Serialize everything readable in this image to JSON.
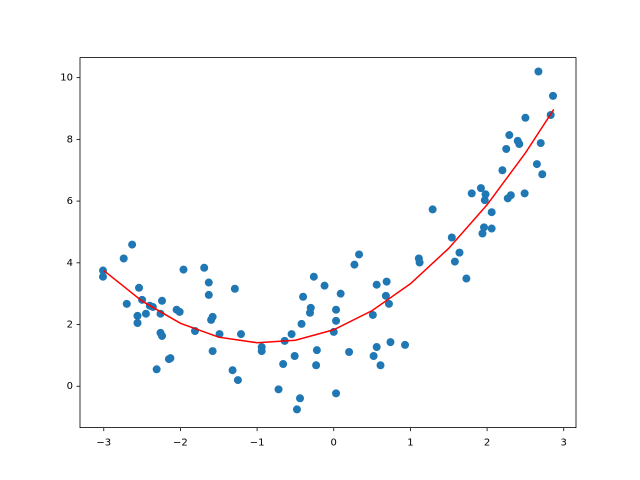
{
  "chart_data": {
    "type": "scatter",
    "x": [
      -3.01,
      -3.01,
      -2.74,
      -2.63,
      -2.7,
      -2.54,
      -2.56,
      -2.56,
      -2.5,
      -2.45,
      -2.4,
      -2.36,
      -2.31,
      -2.24,
      -2.26,
      -2.26,
      -2.24,
      -2.15,
      -2.13,
      -2.05,
      -2.01,
      -1.96,
      -1.81,
      -1.69,
      -1.63,
      -1.63,
      -1.6,
      -1.58,
      -1.58,
      -1.49,
      -1.32,
      -1.29,
      -1.25,
      -1.21,
      -0.94,
      -0.94,
      -0.72,
      -0.66,
      -0.64,
      -0.55,
      -0.51,
      -0.48,
      -0.44,
      -0.42,
      -0.4,
      -0.31,
      -0.3,
      -0.26,
      -0.23,
      -0.22,
      -0.12,
      0,
      0.03,
      0.03,
      0.03,
      0.09,
      0.2,
      0.27,
      0.33,
      0.51,
      0.52,
      0.56,
      0.56,
      0.61,
      0.68,
      0.69,
      0.72,
      0.74,
      0.93,
      1.11,
      1.12,
      1.29,
      1.54,
      1.58,
      1.64,
      1.73,
      1.8,
      1.92,
      1.97,
      1.98,
      1.94,
      1.96,
      2.06,
      2.06,
      2.2,
      2.25,
      2.27,
      2.31,
      2.29,
      2.4,
      2.42,
      2.49,
      2.5,
      2.65,
      2.67,
      2.7,
      2.72,
      2.83,
      2.86
    ],
    "values": [
      3.75,
      3.55,
      4.14,
      4.59,
      2.67,
      3.19,
      2.28,
      2.05,
      2.8,
      2.35,
      2.61,
      2.57,
      0.55,
      2.77,
      2.35,
      1.73,
      1.63,
      0.88,
      0.91,
      2.48,
      2.41,
      3.78,
      1.79,
      3.84,
      3.36,
      2.96,
      2.15,
      2.25,
      1.14,
      1.69,
      0.52,
      3.16,
      0.2,
      1.69,
      1.27,
      1.14,
      -0.1,
      0.72,
      1.47,
      1.69,
      0.98,
      -0.75,
      -0.39,
      2.02,
      2.9,
      2.38,
      2.54,
      3.55,
      0.68,
      1.17,
      3.26,
      1.76,
      2.12,
      2.48,
      -0.23,
      3.0,
      1.11,
      3.94,
      4.27,
      2.31,
      0.98,
      1.27,
      3.29,
      0.68,
      2.93,
      3.39,
      2.67,
      1.43,
      1.34,
      4.14,
      4.01,
      5.73,
      4.82,
      4.04,
      4.33,
      3.49,
      6.25,
      6.42,
      6.03,
      6.22,
      4.95,
      5.15,
      5.64,
      5.11,
      7.0,
      7.69,
      6.09,
      6.19,
      8.14,
      7.95,
      7.85,
      6.25,
      8.7,
      7.2,
      10.2,
      7.88,
      6.87,
      8.79,
      9.41
    ],
    "color": "#1f77b4",
    "line": {
      "x": [
        -3,
        -2.5,
        -2,
        -1.5,
        -1,
        -0.5,
        0,
        0.5,
        1,
        1.5,
        2,
        2.5,
        2.87
      ],
      "values": [
        3.75,
        2.76,
        2.04,
        1.59,
        1.41,
        1.49,
        1.83,
        2.45,
        3.32,
        4.47,
        5.88,
        7.56,
        8.97
      ],
      "color": "red"
    },
    "xlim": [
      -3.31,
      3.16
    ],
    "ylim": [
      -1.34,
      10.65
    ],
    "xticks": [
      {
        "value": -3,
        "label": "−3"
      },
      {
        "value": -2,
        "label": "−2"
      },
      {
        "value": -1,
        "label": "−1"
      },
      0,
      1,
      2,
      3
    ],
    "yticks": [
      0,
      2,
      4,
      6,
      8,
      10
    ]
  }
}
